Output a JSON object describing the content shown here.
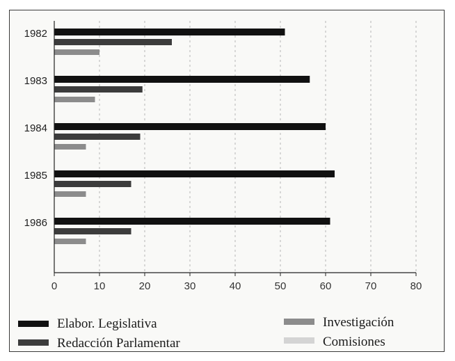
{
  "chart_data": {
    "type": "bar",
    "orientation": "horizontal",
    "categories": [
      "1982",
      "1983",
      "1984",
      "1985",
      "1986"
    ],
    "series": [
      {
        "name": "Elabor. Legislativa",
        "values": [
          51,
          56.5,
          60,
          62,
          61
        ],
        "color": "#111111"
      },
      {
        "name": "Redacción Parlamentar",
        "values": [
          26,
          19.5,
          19,
          17,
          17
        ],
        "color": "#3c3c3c"
      },
      {
        "name": "Investigación",
        "values": [
          10,
          9,
          7,
          7,
          7
        ],
        "color": "#8c8c8c"
      },
      {
        "name": "Comisiones",
        "values": [
          0,
          0,
          0,
          0,
          0
        ],
        "color": "#d4d4d4"
      }
    ],
    "xlim": [
      0,
      80
    ],
    "xticks": [
      0,
      10,
      20,
      30,
      40,
      50,
      60,
      70,
      80
    ],
    "grid": "vertical dashed",
    "legend_position": "bottom"
  }
}
